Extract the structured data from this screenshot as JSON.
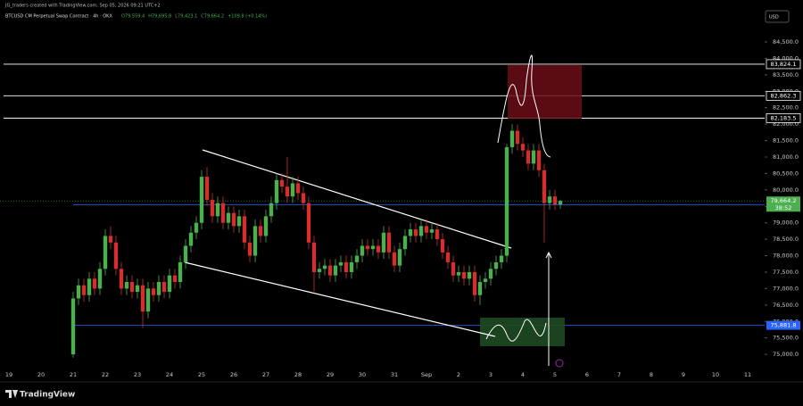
{
  "header": {
    "credit": "JG_traders created with TradingView.com, Sep 05, 2026 09:21 UTC+2",
    "symbol": "BTCUSD CM Perpetual Swap Contract · 4h · OKX",
    "ohlc": [
      "O79,559.4",
      "H79,695.8",
      "L79,423.1",
      "C79,664.2",
      "+109.8 (+0.14%)"
    ],
    "currency": "USD"
  },
  "footer": {
    "brand": "TradingView"
  },
  "chart_data": {
    "type": "candlestick",
    "up_color": "#4caf50",
    "down_color": "#d32f2f",
    "x_axis_labels": [
      "19",
      "20",
      "21",
      "22",
      "23",
      "24",
      "25",
      "26",
      "27",
      "28",
      "29",
      "30",
      "31",
      "Sep",
      "2",
      "3",
      "4",
      "5",
      "6",
      "7",
      "8",
      "9",
      "10",
      "11"
    ],
    "ylim": [
      74650,
      85450
    ],
    "yticks": [
      {
        "value": 75000,
        "label": "75,000.0"
      },
      {
        "value": 75500,
        "label": "75,500.0"
      },
      {
        "value": 76000,
        "label": "76,000.0"
      },
      {
        "value": 76500,
        "label": "76,500.0"
      },
      {
        "value": 77000,
        "label": "77,000.0"
      },
      {
        "value": 77500,
        "label": "77,500.0"
      },
      {
        "value": 78000,
        "label": "78,000.0"
      },
      {
        "value": 78500,
        "label": "78,500.0"
      },
      {
        "value": 79000,
        "label": "79,000.0"
      },
      {
        "value": 79500,
        "label": "79,500.0"
      },
      {
        "value": 80000,
        "label": "80,000.0"
      },
      {
        "value": 80500,
        "label": "80,500.0"
      },
      {
        "value": 81000,
        "label": "81,000.0"
      },
      {
        "value": 81500,
        "label": "81,500.0"
      },
      {
        "value": 82000,
        "label": "82,000.0"
      },
      {
        "value": 82500,
        "label": "82,500.0"
      },
      {
        "value": 83000,
        "label": "83,000.0"
      },
      {
        "value": 83500,
        "label": "83,500.0"
      },
      {
        "value": 84000,
        "label": "84,000.0"
      },
      {
        "value": 84500,
        "label": "84,500.0"
      }
    ],
    "open": [
      75000,
      76700,
      77100,
      76800,
      77300,
      77000,
      77600,
      78600,
      78400,
      77600,
      77000,
      77200,
      76900,
      77100,
      76300,
      77000,
      76800,
      77200,
      76900,
      77400,
      77200,
      77800,
      78300,
      78700,
      79000,
      80400,
      79700,
      79200,
      79600,
      79000,
      79300,
      78900,
      79200,
      78400,
      78000,
      78900,
      78600,
      79200,
      79600,
      80300,
      80100,
      79800,
      80200,
      79900,
      79600,
      78400,
      77500,
      77600,
      77700,
      77400,
      77700,
      77800,
      77500,
      77800,
      78000,
      78300,
      78200,
      78300,
      78100,
      78700,
      78100,
      77700,
      78200,
      78600,
      78800,
      78600,
      78900,
      78700,
      78800,
      78500,
      78100,
      77800,
      77400,
      77500,
      77300,
      77500,
      76800,
      77200,
      77300,
      77600,
      77800,
      78000,
      81300,
      81800,
      81400,
      81200,
      80800,
      81200,
      80600,
      79600,
      79800,
      79559.4
    ],
    "high": [
      76900,
      77300,
      77300,
      77500,
      77500,
      77800,
      78800,
      78900,
      78600,
      77800,
      77400,
      77400,
      77300,
      77300,
      77200,
      77200,
      77400,
      77400,
      77600,
      77600,
      78000,
      78500,
      78900,
      79200,
      80600,
      80700,
      79900,
      79800,
      79800,
      79500,
      79500,
      79400,
      79400,
      78600,
      79100,
      79100,
      79400,
      79800,
      80500,
      80500,
      81000,
      80400,
      80400,
      80100,
      79800,
      78600,
      77800,
      77900,
      77900,
      77900,
      78000,
      78000,
      78000,
      78200,
      78500,
      78500,
      78500,
      78500,
      78900,
      78900,
      78300,
      78400,
      78800,
      79000,
      79000,
      79100,
      79100,
      79000,
      79000,
      78700,
      78300,
      78000,
      77700,
      77700,
      77700,
      77700,
      77400,
      77500,
      77800,
      78000,
      78200,
      81400,
      82000,
      82000,
      81600,
      81400,
      81400,
      81400,
      80800,
      80000,
      80000,
      79695.8
    ],
    "low": [
      74900,
      76500,
      76600,
      76600,
      76800,
      76800,
      77400,
      78200,
      77400,
      76800,
      76800,
      76700,
      76700,
      75800,
      76100,
      76600,
      76600,
      76700,
      76700,
      77000,
      77000,
      77600,
      78100,
      78500,
      78800,
      79500,
      79000,
      79000,
      78800,
      78800,
      78700,
      78700,
      78200,
      77800,
      77800,
      78400,
      78400,
      79000,
      79400,
      79900,
      79600,
      79600,
      79700,
      79400,
      78200,
      76900,
      77300,
      77400,
      77200,
      77200,
      77500,
      77300,
      77300,
      77600,
      77800,
      78000,
      78000,
      77900,
      77900,
      77900,
      77500,
      77500,
      78000,
      78400,
      78400,
      78400,
      78500,
      78500,
      78300,
      77900,
      77600,
      77200,
      77200,
      77100,
      77100,
      76600,
      76500,
      77000,
      77100,
      77400,
      77600,
      77800,
      81100,
      81200,
      81000,
      80600,
      80600,
      80400,
      78400,
      79400,
      79400,
      79423.1
    ],
    "close": [
      76700,
      77100,
      76800,
      77300,
      77000,
      77600,
      78600,
      78400,
      77600,
      77000,
      77200,
      76900,
      77100,
      76300,
      77000,
      76800,
      77200,
      76900,
      77400,
      77200,
      77800,
      78300,
      78700,
      79000,
      80400,
      79700,
      79200,
      79600,
      79000,
      79300,
      78900,
      79200,
      78400,
      78000,
      78900,
      78600,
      79200,
      79600,
      80300,
      80100,
      79800,
      80200,
      79900,
      79600,
      78400,
      77500,
      77600,
      77700,
      77400,
      77700,
      77800,
      77500,
      77800,
      78000,
      78300,
      78200,
      78300,
      78100,
      78700,
      78100,
      77700,
      78200,
      78600,
      78800,
      78600,
      78900,
      78700,
      78800,
      78500,
      78100,
      77800,
      77400,
      77500,
      77300,
      77500,
      76800,
      77200,
      77300,
      77600,
      77800,
      78000,
      81300,
      81800,
      81400,
      81200,
      80800,
      81200,
      80600,
      79600,
      79800,
      79559.4,
      79664.2
    ],
    "levels": [
      {
        "value": 83824.1,
        "label": "83,824.1",
        "color": "#ffffff"
      },
      {
        "value": 82862.3,
        "label": "82,862.3",
        "color": "#ffffff"
      },
      {
        "value": 82183.5,
        "label": "82,183.5",
        "color": "#ffffff"
      },
      {
        "value": 79544.5,
        "label": "79,544.5",
        "color": "#2962ff"
      },
      {
        "value": 75881.8,
        "label": "75,881.8",
        "color": "#2962ff"
      }
    ],
    "price_badge": {
      "value": 79664.2,
      "label": "79,664.2",
      "timer": "38:52",
      "color": "#4caf50"
    }
  }
}
